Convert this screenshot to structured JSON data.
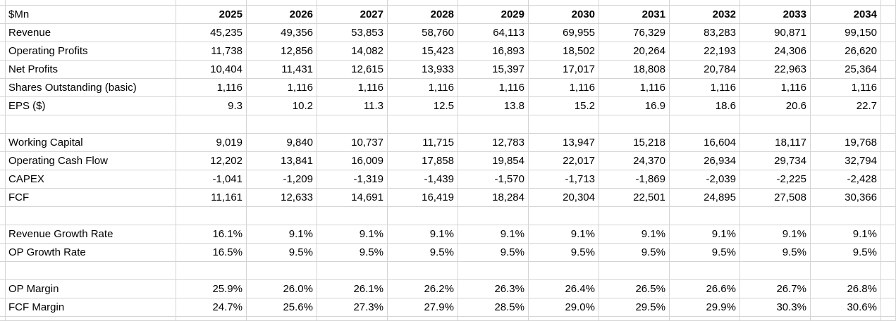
{
  "sheet": {
    "unit_label": "$Mn",
    "years": [
      "2025",
      "2026",
      "2027",
      "2028",
      "2029",
      "2030",
      "2031",
      "2032",
      "2033",
      "2034"
    ],
    "rows": [
      {
        "label": "Revenue",
        "values": [
          "45,235",
          "49,356",
          "53,853",
          "58,760",
          "64,113",
          "69,955",
          "76,329",
          "83,283",
          "90,871",
          "99,150"
        ]
      },
      {
        "label": "Operating Profits",
        "values": [
          "11,738",
          "12,856",
          "14,082",
          "15,423",
          "16,893",
          "18,502",
          "20,264",
          "22,193",
          "24,306",
          "26,620"
        ]
      },
      {
        "label": "Net Profits",
        "values": [
          "10,404",
          "11,431",
          "12,615",
          "13,933",
          "15,397",
          "17,017",
          "18,808",
          "20,784",
          "22,963",
          "25,364"
        ]
      },
      {
        "label": "Shares Outstanding (basic)",
        "values": [
          "1,116",
          "1,116",
          "1,116",
          "1,116",
          "1,116",
          "1,116",
          "1,116",
          "1,116",
          "1,116",
          "1,116"
        ]
      },
      {
        "label": "EPS ($)",
        "values": [
          "9.3",
          "10.2",
          "11.3",
          "12.5",
          "13.8",
          "15.2",
          "16.9",
          "18.6",
          "20.6",
          "22.7"
        ]
      },
      {
        "label": "",
        "values": [
          "",
          "",
          "",
          "",
          "",
          "",
          "",
          "",
          "",
          ""
        ]
      },
      {
        "label": "Working Capital",
        "values": [
          "9,019",
          "9,840",
          "10,737",
          "11,715",
          "12,783",
          "13,947",
          "15,218",
          "16,604",
          "18,117",
          "19,768"
        ]
      },
      {
        "label": "Operating Cash Flow",
        "values": [
          "12,202",
          "13,841",
          "16,009",
          "17,858",
          "19,854",
          "22,017",
          "24,370",
          "26,934",
          "29,734",
          "32,794"
        ]
      },
      {
        "label": "CAPEX",
        "values": [
          "-1,041",
          "-1,209",
          "-1,319",
          "-1,439",
          "-1,570",
          "-1,713",
          "-1,869",
          "-2,039",
          "-2,225",
          "-2,428"
        ]
      },
      {
        "label": "FCF",
        "values": [
          "11,161",
          "12,633",
          "14,691",
          "16,419",
          "18,284",
          "20,304",
          "22,501",
          "24,895",
          "27,508",
          "30,366"
        ]
      },
      {
        "label": "",
        "values": [
          "",
          "",
          "",
          "",
          "",
          "",
          "",
          "",
          "",
          ""
        ]
      },
      {
        "label": "Revenue Growth Rate",
        "values": [
          "16.1%",
          "9.1%",
          "9.1%",
          "9.1%",
          "9.1%",
          "9.1%",
          "9.1%",
          "9.1%",
          "9.1%",
          "9.1%"
        ]
      },
      {
        "label": "OP Growth Rate",
        "values": [
          "16.5%",
          "9.5%",
          "9.5%",
          "9.5%",
          "9.5%",
          "9.5%",
          "9.5%",
          "9.5%",
          "9.5%",
          "9.5%"
        ]
      },
      {
        "label": "",
        "values": [
          "",
          "",
          "",
          "",
          "",
          "",
          "",
          "",
          "",
          ""
        ]
      },
      {
        "label": "OP Margin",
        "values": [
          "25.9%",
          "26.0%",
          "26.1%",
          "26.2%",
          "26.3%",
          "26.4%",
          "26.5%",
          "26.6%",
          "26.7%",
          "26.8%"
        ]
      },
      {
        "label": "FCF Margin",
        "values": [
          "24.7%",
          "25.6%",
          "27.3%",
          "27.9%",
          "28.5%",
          "29.0%",
          "29.5%",
          "29.9%",
          "30.3%",
          "30.6%"
        ]
      }
    ],
    "colors": {
      "gridline": "#d4d4d4",
      "text": "#000000",
      "background": "#ffffff"
    }
  }
}
